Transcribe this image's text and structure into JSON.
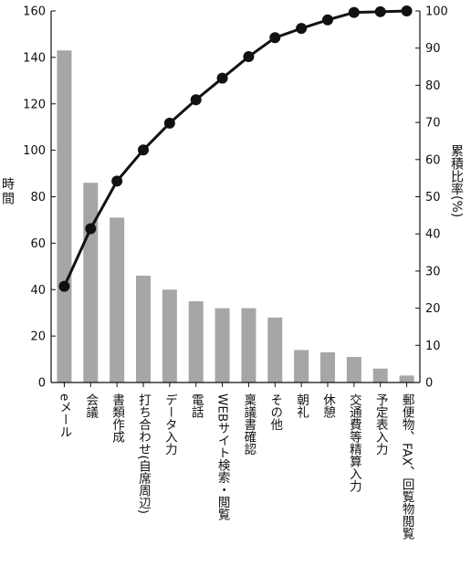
{
  "chart_data": {
    "type": "bar",
    "title": "",
    "categories": [
      "eメール",
      "会議",
      "書類作成",
      "打ち合わせ(自席周辺)",
      "データ入力",
      "電話",
      "WEBサイト検索・閲覧",
      "稟議書確認",
      "その他",
      "朝礼",
      "休憩",
      "交通費等精算入力",
      "予定表入力",
      "郵便物、FAX、回覧物閲覧"
    ],
    "series": [
      {
        "type": "bar",
        "axis": "left",
        "color": "#a6a6a6",
        "values": [
          143,
          86,
          71,
          46,
          40,
          35,
          32,
          32,
          28,
          14,
          13,
          11,
          6,
          3
        ]
      },
      {
        "type": "line",
        "axis": "right",
        "color": "#111111",
        "values": [
          25.9,
          41.4,
          54.2,
          62.6,
          69.8,
          76.1,
          81.9,
          87.7,
          92.8,
          95.3,
          97.6,
          99.6,
          99.8,
          100
        ]
      }
    ],
    "ylabel": "時間",
    "ylabel_right": "累積比率(%)",
    "ylim": [
      0,
      160
    ],
    "ylim_right": [
      0,
      100
    ],
    "yticks": [
      0,
      20,
      40,
      60,
      80,
      100,
      120,
      140,
      160
    ],
    "yticks_right": [
      0,
      10,
      20,
      30,
      40,
      50,
      60,
      70,
      80,
      90,
      100
    ],
    "grid": false,
    "legend": "none"
  }
}
